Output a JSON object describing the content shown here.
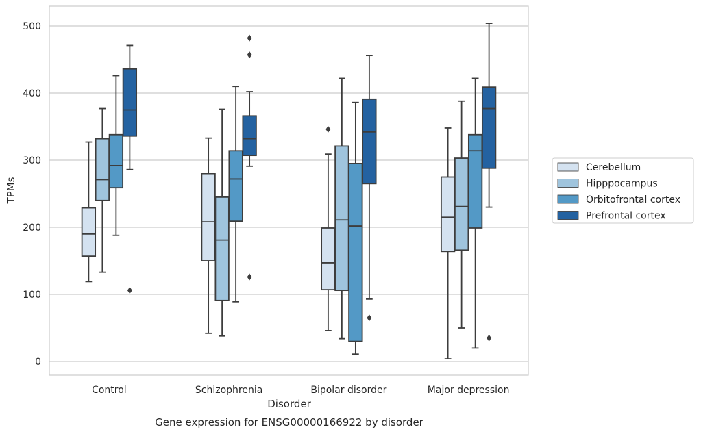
{
  "chart_data": {
    "type": "box",
    "xlabel": "Disorder",
    "ylabel": "TPMs",
    "caption": "Gene expression for ENSG00000166922 by disorder",
    "ylim": [
      -20,
      530
    ],
    "yticks": [
      0,
      100,
      200,
      300,
      400,
      500
    ],
    "grid": "horizontal",
    "legend_position": "right",
    "categories": [
      "Control",
      "Schizophrenia",
      "Bipolar disorder",
      "Major depression"
    ],
    "series": [
      {
        "name": "Cerebellum",
        "color": "#d4e2f0",
        "boxes": [
          {
            "min": 119,
            "q1": 157,
            "median": 190,
            "q3": 229,
            "max": 327,
            "outliers": []
          },
          {
            "min": 42,
            "q1": 150,
            "median": 208,
            "q3": 280,
            "max": 333,
            "outliers": []
          },
          {
            "min": 46,
            "q1": 107,
            "median": 147,
            "q3": 199,
            "max": 309,
            "outliers": [
              346
            ]
          },
          {
            "min": 4,
            "q1": 164,
            "median": 215,
            "q3": 275,
            "max": 348,
            "outliers": []
          }
        ]
      },
      {
        "name": "Hipppocampus",
        "color": "#9fc4dd",
        "boxes": [
          {
            "min": 133,
            "q1": 240,
            "median": 271,
            "q3": 332,
            "max": 377,
            "outliers": []
          },
          {
            "min": 38,
            "q1": 91,
            "median": 181,
            "q3": 245,
            "max": 376,
            "outliers": []
          },
          {
            "min": 34,
            "q1": 106,
            "median": 211,
            "q3": 321,
            "max": 422,
            "outliers": []
          },
          {
            "min": 50,
            "q1": 166,
            "median": 231,
            "q3": 303,
            "max": 388,
            "outliers": []
          }
        ]
      },
      {
        "name": "Orbitofrontal cortex",
        "color": "#5399c6",
        "boxes": [
          {
            "min": 188,
            "q1": 259,
            "median": 292,
            "q3": 338,
            "max": 426,
            "outliers": []
          },
          {
            "min": 89,
            "q1": 209,
            "median": 272,
            "q3": 314,
            "max": 410,
            "outliers": []
          },
          {
            "min": 11,
            "q1": 30,
            "median": 202,
            "q3": 295,
            "max": 386,
            "outliers": []
          },
          {
            "min": 20,
            "q1": 199,
            "median": 314,
            "q3": 338,
            "max": 422,
            "outliers": []
          }
        ]
      },
      {
        "name": "Prefrontal cortex",
        "color": "#2462a1",
        "boxes": [
          {
            "min": 286,
            "q1": 336,
            "median": 375,
            "q3": 436,
            "max": 471,
            "outliers": [
              106
            ]
          },
          {
            "min": 291,
            "q1": 307,
            "median": 332,
            "q3": 366,
            "max": 402,
            "outliers": [
              482,
              457,
              126
            ]
          },
          {
            "min": 93,
            "q1": 265,
            "median": 342,
            "q3": 391,
            "max": 456,
            "outliers": [
              65
            ]
          },
          {
            "min": 230,
            "q1": 288,
            "median": 377,
            "q3": 409,
            "max": 504,
            "outliers": [
              35
            ]
          }
        ]
      }
    ]
  }
}
